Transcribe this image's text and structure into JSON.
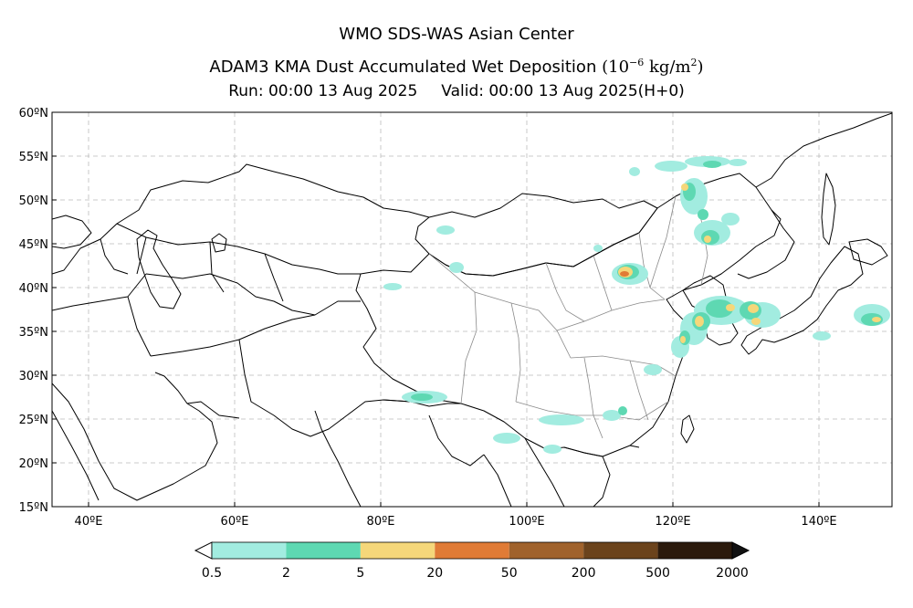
{
  "header": {
    "center": "WMO SDS-WAS Asian Center",
    "title_main": "ADAM3 KMA Dust Accumulated Wet Deposition",
    "title_unit_open": "(10",
    "title_unit_exp": "−6",
    "title_unit_mid": " kg/m",
    "title_unit_exp2": "2",
    "title_unit_close": ")",
    "run": "Run: 00:00 13 Aug 2025",
    "valid": "Valid: 00:00 13 Aug 2025(H+0)"
  },
  "map": {
    "lon_range": [
      35,
      150
    ],
    "lat_range": [
      15,
      60
    ],
    "lat_ticks": [
      "15ºN",
      "20ºN",
      "25ºN",
      "30ºN",
      "35ºN",
      "40ºN",
      "45ºN",
      "50ºN",
      "55ºN",
      "60ºN"
    ],
    "lon_ticks": [
      "40ºE",
      "60ºE",
      "80ºE",
      "100ºE",
      "120ºE",
      "140ºE"
    ],
    "gridlines": true
  },
  "colorbar": {
    "labels": [
      "0.5",
      "2",
      "5",
      "20",
      "50",
      "200",
      "500",
      "2000"
    ],
    "colors": [
      "#a2ece0",
      "#5ed8b2",
      "#f5d77a",
      "#e07b36",
      "#a0622c",
      "#6b431c",
      "#2b1a0c"
    ]
  },
  "deposition_colors": {
    "low": "#a2ece0",
    "mid": "#5ed8b2",
    "high": "#f5d77a",
    "peak": "#e07b36"
  }
}
